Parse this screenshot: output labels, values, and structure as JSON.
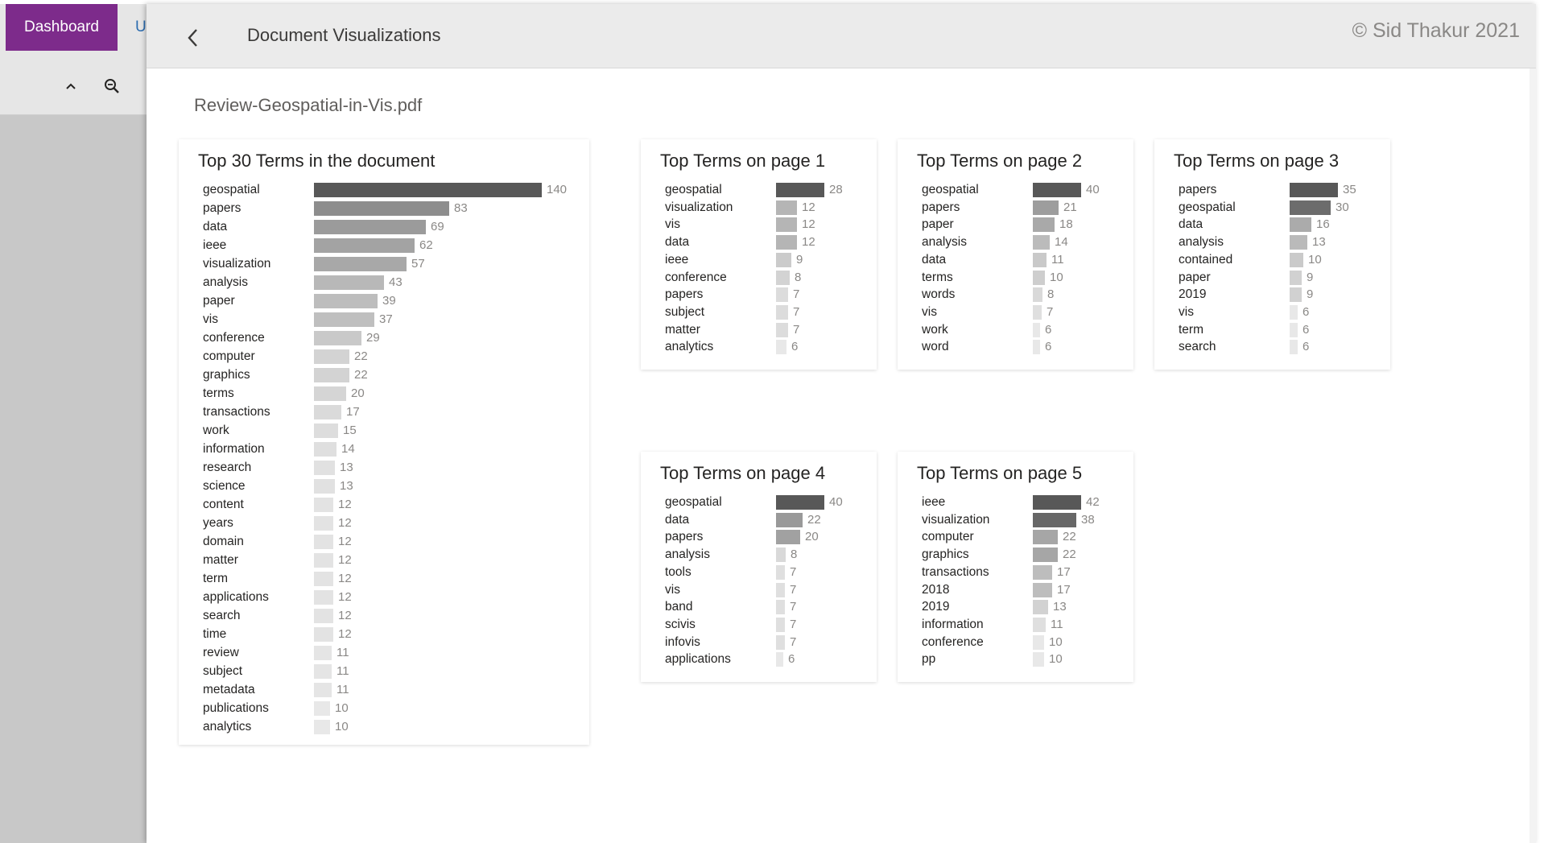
{
  "app": {
    "tabs": [
      "Dashboard",
      "U"
    ],
    "toolbar": {
      "collapse_icon": "chevron-up-icon",
      "zoom_icon": "zoom-out-icon"
    }
  },
  "header": {
    "title": "Document Visualizations",
    "copyright": "© Sid Thakur 2021",
    "back_icon": "chevron-left-icon"
  },
  "document": {
    "filename": "Review-Geospatial-in-Vis.pdf"
  },
  "colors": {
    "accent": "#7d2b8b",
    "bar_dark": "#595959",
    "bar_light": "#e6e6e6"
  },
  "chart_data": [
    {
      "type": "bar",
      "title": "Top 30 Terms in the document",
      "categories": [
        "geospatial",
        "papers",
        "data",
        "ieee",
        "visualization",
        "analysis",
        "paper",
        "vis",
        "conference",
        "computer",
        "graphics",
        "terms",
        "transactions",
        "work",
        "information",
        "research",
        "science",
        "content",
        "years",
        "domain",
        "matter",
        "term",
        "applications",
        "search",
        "time",
        "review",
        "subject",
        "metadata",
        "publications",
        "analytics"
      ],
      "values": [
        140,
        83,
        69,
        62,
        57,
        43,
        39,
        37,
        29,
        22,
        22,
        20,
        17,
        15,
        14,
        13,
        13,
        12,
        12,
        12,
        12,
        12,
        12,
        12,
        12,
        11,
        11,
        11,
        10,
        10
      ],
      "orientation": "horizontal"
    },
    {
      "type": "bar",
      "title": "Top Terms on page 1",
      "categories": [
        "geospatial",
        "visualization",
        "vis",
        "data",
        "ieee",
        "conference",
        "papers",
        "subject",
        "matter",
        "analytics"
      ],
      "values": [
        28,
        12,
        12,
        12,
        9,
        8,
        7,
        7,
        7,
        6
      ],
      "orientation": "horizontal"
    },
    {
      "type": "bar",
      "title": "Top Terms on page 2",
      "categories": [
        "geospatial",
        "papers",
        "paper",
        "analysis",
        "data",
        "terms",
        "words",
        "vis",
        "work",
        "word"
      ],
      "values": [
        40,
        21,
        18,
        14,
        11,
        10,
        8,
        7,
        6,
        6
      ],
      "orientation": "horizontal"
    },
    {
      "type": "bar",
      "title": "Top Terms on page 3",
      "categories": [
        "papers",
        "geospatial",
        "data",
        "analysis",
        "contained",
        "paper",
        "2019",
        "vis",
        "term",
        "search"
      ],
      "values": [
        35,
        30,
        16,
        13,
        10,
        9,
        9,
        6,
        6,
        6
      ],
      "orientation": "horizontal"
    },
    {
      "type": "bar",
      "title": "Top Terms on page 4",
      "categories": [
        "geospatial",
        "data",
        "papers",
        "analysis",
        "tools",
        "vis",
        "band",
        "scivis",
        "infovis",
        "applications"
      ],
      "values": [
        40,
        22,
        20,
        8,
        7,
        7,
        7,
        7,
        7,
        6
      ],
      "orientation": "horizontal"
    },
    {
      "type": "bar",
      "title": "Top Terms on page 5",
      "categories": [
        "ieee",
        "visualization",
        "computer",
        "graphics",
        "transactions",
        "2018",
        "2019",
        "information",
        "conference",
        "pp"
      ],
      "values": [
        42,
        38,
        22,
        22,
        17,
        17,
        13,
        11,
        10,
        10
      ],
      "orientation": "horizontal"
    }
  ]
}
